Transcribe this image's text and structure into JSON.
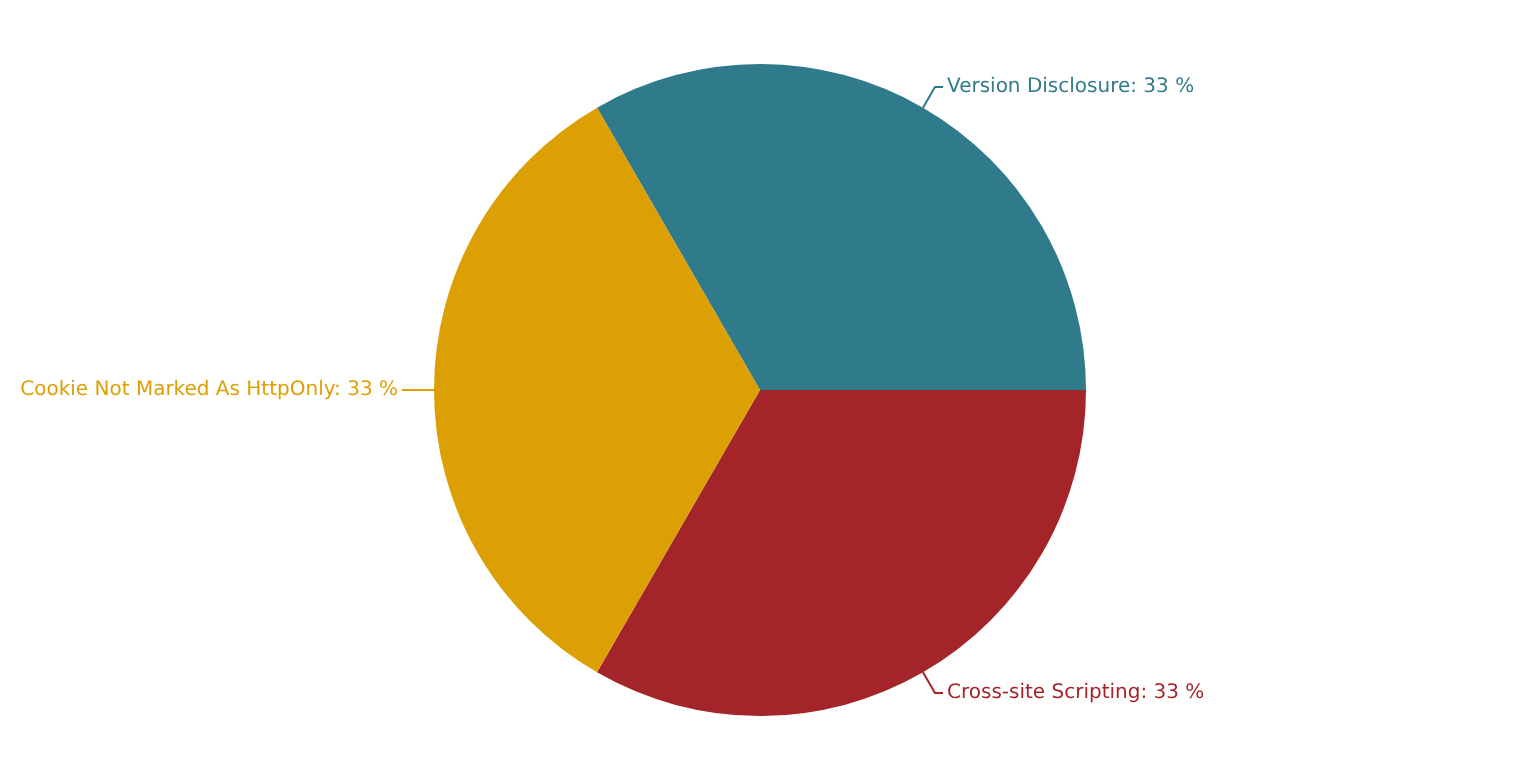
{
  "chart_data": {
    "type": "pie",
    "categories": [
      "Version Disclosure",
      "Cross-site Scripting",
      "Cookie Not Marked As HttpOnly"
    ],
    "values": [
      33,
      33,
      33
    ],
    "value_labels": [
      "33 %",
      "33 %",
      "33 %"
    ],
    "colors": [
      "#2f7b8c",
      "#a42529",
      "#dca005"
    ]
  }
}
